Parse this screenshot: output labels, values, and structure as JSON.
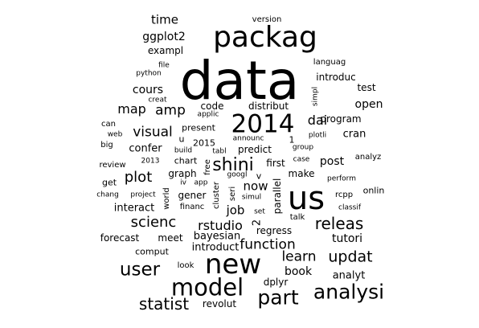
{
  "text_color": "#000000",
  "background": "#ffffff",
  "words": [
    {
      "text": "data",
      "rel_size": 1.0,
      "vertical": false
    },
    {
      "text": "packag",
      "rel_size": 0.55,
      "vertical": false
    },
    {
      "text": "us",
      "rel_size": 0.6,
      "vertical": false
    },
    {
      "text": "new",
      "rel_size": 0.5,
      "vertical": false
    },
    {
      "text": "2014",
      "rel_size": 0.5,
      "vertical": false
    },
    {
      "text": "model",
      "rel_size": 0.45,
      "vertical": false
    },
    {
      "text": "part",
      "rel_size": 0.38,
      "vertical": false
    },
    {
      "text": "analysi",
      "rel_size": 0.38,
      "vertical": false
    },
    {
      "text": "shini",
      "rel_size": 0.34,
      "vertical": false
    },
    {
      "text": "user",
      "rel_size": 0.34,
      "vertical": false
    },
    {
      "text": "statist",
      "rel_size": 0.3,
      "vertical": false
    },
    {
      "text": "releas",
      "rel_size": 0.3,
      "vertical": false
    },
    {
      "text": "updat",
      "rel_size": 0.28,
      "vertical": false
    },
    {
      "text": "scienc",
      "rel_size": 0.27,
      "vertical": false
    },
    {
      "text": "plot",
      "rel_size": 0.27,
      "vertical": false
    },
    {
      "text": "function",
      "rel_size": 0.25,
      "vertical": false
    },
    {
      "text": "learn",
      "rel_size": 0.25,
      "vertical": false
    },
    {
      "text": "visual",
      "rel_size": 0.25,
      "vertical": false
    },
    {
      "text": "amp",
      "rel_size": 0.25,
      "vertical": false
    },
    {
      "text": "map",
      "rel_size": 0.24,
      "vertical": false
    },
    {
      "text": "rstudio",
      "rel_size": 0.24,
      "vertical": false
    },
    {
      "text": "dai",
      "rel_size": 0.23,
      "vertical": false
    },
    {
      "text": "job",
      "rel_size": 0.22,
      "vertical": false
    },
    {
      "text": "now",
      "rel_size": 0.22,
      "vertical": false
    },
    {
      "text": "tutori",
      "rel_size": 0.2,
      "vertical": false
    },
    {
      "text": "open",
      "rel_size": 0.2,
      "vertical": false
    },
    {
      "text": "book",
      "rel_size": 0.2,
      "vertical": false
    },
    {
      "text": "cours",
      "rel_size": 0.2,
      "vertical": false
    },
    {
      "text": "post",
      "rel_size": 0.2,
      "vertical": false
    },
    {
      "text": "time",
      "rel_size": 0.2,
      "vertical": false
    },
    {
      "text": "ggplot2",
      "rel_size": 0.19,
      "vertical": false
    },
    {
      "text": "interact",
      "rel_size": 0.19,
      "vertical": false
    },
    {
      "text": "analyt",
      "rel_size": 0.18,
      "vertical": false
    },
    {
      "text": "introduct",
      "rel_size": 0.18,
      "vertical": false
    },
    {
      "text": "bayesian",
      "rel_size": 0.18,
      "vertical": false
    },
    {
      "text": "confer",
      "rel_size": 0.18,
      "vertical": false
    },
    {
      "text": "cran",
      "rel_size": 0.18,
      "vertical": true
    },
    {
      "text": "program",
      "rel_size": 0.17,
      "vertical": true
    },
    {
      "text": "introduc",
      "rel_size": 0.17,
      "vertical": false
    },
    {
      "text": "exampl",
      "rel_size": 0.17,
      "vertical": false
    },
    {
      "text": "revolut",
      "rel_size": 0.16,
      "vertical": false
    },
    {
      "text": "forecast",
      "rel_size": 0.16,
      "vertical": false
    },
    {
      "text": "meet",
      "rel_size": 0.16,
      "vertical": false
    },
    {
      "text": "dplyr",
      "rel_size": 0.16,
      "vertical": false
    },
    {
      "text": "regress",
      "rel_size": 0.16,
      "vertical": false
    },
    {
      "text": "test",
      "rel_size": 0.16,
      "vertical": false
    },
    {
      "text": "code",
      "rel_size": 0.16,
      "vertical": false
    },
    {
      "text": "distribut",
      "rel_size": 0.16,
      "vertical": false
    },
    {
      "text": "gener",
      "rel_size": 0.16,
      "vertical": false
    },
    {
      "text": "graph",
      "rel_size": 0.16,
      "vertical": false
    },
    {
      "text": "make",
      "rel_size": 0.16,
      "vertical": false
    },
    {
      "text": "first",
      "rel_size": 0.16,
      "vertical": false
    },
    {
      "text": "predict",
      "rel_size": 0.16,
      "vertical": false
    },
    {
      "text": "onlin",
      "rel_size": 0.15,
      "vertical": false
    },
    {
      "text": "present",
      "rel_size": 0.15,
      "vertical": false
    },
    {
      "text": "comput",
      "rel_size": 0.15,
      "vertical": false
    },
    {
      "text": "get",
      "rel_size": 0.15,
      "vertical": false
    },
    {
      "text": "chart",
      "rel_size": 0.15,
      "vertical": false
    },
    {
      "text": "2015",
      "rel_size": 0.15,
      "vertical": false
    },
    {
      "text": "languag",
      "rel_size": 0.14,
      "vertical": false
    },
    {
      "text": "can",
      "rel_size": 0.14,
      "vertical": false
    },
    {
      "text": "big",
      "rel_size": 0.14,
      "vertical": false
    },
    {
      "text": "review",
      "rel_size": 0.14,
      "vertical": false
    },
    {
      "text": "version",
      "rel_size": 0.14,
      "vertical": false
    },
    {
      "text": "look",
      "rel_size": 0.14,
      "vertical": false
    },
    {
      "text": "financ",
      "rel_size": 0.14,
      "vertical": false
    },
    {
      "text": "rcpp",
      "rel_size": 0.14,
      "vertical": false
    },
    {
      "text": "analyz",
      "rel_size": 0.14,
      "vertical": false
    },
    {
      "text": "talk",
      "rel_size": 0.14,
      "vertical": false
    },
    {
      "text": "set",
      "rel_size": 0.13,
      "vertical": false
    },
    {
      "text": "simul",
      "rel_size": 0.13,
      "vertical": false
    },
    {
      "text": "announc",
      "rel_size": 0.13,
      "vertical": false
    },
    {
      "text": "group",
      "rel_size": 0.13,
      "vertical": false
    },
    {
      "text": "googl",
      "rel_size": 0.13,
      "vertical": false
    },
    {
      "text": "build",
      "rel_size": 0.13,
      "vertical": false
    },
    {
      "text": "tabl",
      "rel_size": 0.13,
      "vertical": false
    },
    {
      "text": "case",
      "rel_size": 0.13,
      "vertical": false
    },
    {
      "text": "perform",
      "rel_size": 0.13,
      "vertical": false
    },
    {
      "text": "classif",
      "rel_size": 0.13,
      "vertical": false
    },
    {
      "text": "creat",
      "rel_size": 0.13,
      "vertical": false
    },
    {
      "text": "file",
      "rel_size": 0.13,
      "vertical": false
    },
    {
      "text": "python",
      "rel_size": 0.13,
      "vertical": false
    },
    {
      "text": "web",
      "rel_size": 0.12,
      "vertical": false
    },
    {
      "text": "2013",
      "rel_size": 0.12,
      "vertical": false
    },
    {
      "text": "chang",
      "rel_size": 0.12,
      "vertical": false
    },
    {
      "text": "project",
      "rel_size": 0.12,
      "vertical": false
    },
    {
      "text": "applic",
      "rel_size": 0.12,
      "vertical": false
    },
    {
      "text": "plotli",
      "rel_size": 0.12,
      "vertical": false
    },
    {
      "text": "simpl",
      "rel_size": 0.12,
      "vertical": true
    },
    {
      "text": "iv",
      "rel_size": 0.12,
      "vertical": false
    },
    {
      "text": "app",
      "rel_size": 0.12,
      "vertical": false
    },
    {
      "text": "world",
      "rel_size": 0.12,
      "vertical": true
    },
    {
      "text": "free",
      "rel_size": 0.12,
      "vertical": true
    },
    {
      "text": "cluster",
      "rel_size": 0.12,
      "vertical": true
    },
    {
      "text": "seri",
      "rel_size": 0.12,
      "vertical": true
    },
    {
      "text": "parallel",
      "rel_size": 0.14,
      "vertical": true
    },
    {
      "text": "2",
      "rel_size": 0.16,
      "vertical": true
    },
    {
      "text": "v",
      "rel_size": 0.14,
      "vertical": false
    },
    {
      "text": "1",
      "rel_size": 0.14,
      "vertical": false
    },
    {
      "text": "u",
      "rel_size": 0.14,
      "vertical": false
    }
  ]
}
